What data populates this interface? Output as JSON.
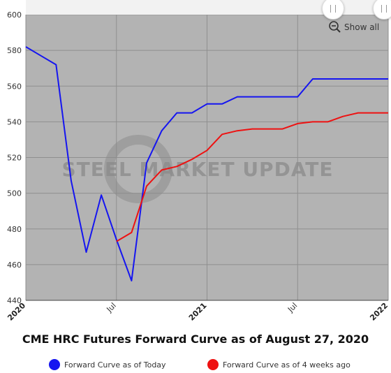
{
  "chart_data": {
    "type": "line",
    "title": "CME HRC Futures Forward Curve as of August 27, 2020",
    "xlabel": "",
    "ylabel": "",
    "ylim": [
      440,
      600
    ],
    "yticks": [
      440,
      460,
      480,
      500,
      520,
      540,
      560,
      580,
      600
    ],
    "xlim": [
      "2020-01",
      "2022-01"
    ],
    "xticks": [
      "2020",
      "Jul",
      "2021",
      "Jul",
      "2022"
    ],
    "x_axis_type": "monthly time",
    "grid": true,
    "legend_position": "bottom",
    "watermark": "STEEL MARKET UPDATE",
    "series": [
      {
        "name": "Forward Curve as of Today",
        "color": "#1515f0",
        "points": [
          {
            "x": "2020-01",
            "y": 582
          },
          {
            "x": "2020-02",
            "y": 577
          },
          {
            "x": "2020-03",
            "y": 572
          },
          {
            "x": "2020-04",
            "y": 507
          },
          {
            "x": "2020-05",
            "y": 467
          },
          {
            "x": "2020-06",
            "y": 499
          },
          {
            "x": "2020-07",
            "y": 474
          },
          {
            "x": "2020-08",
            "y": 451
          },
          {
            "x": "2020-09",
            "y": 517
          },
          {
            "x": "2020-10",
            "y": 535
          },
          {
            "x": "2020-11",
            "y": 545
          },
          {
            "x": "2020-12",
            "y": 545
          },
          {
            "x": "2021-01",
            "y": 550
          },
          {
            "x": "2021-02",
            "y": 550
          },
          {
            "x": "2021-03",
            "y": 554
          },
          {
            "x": "2021-04",
            "y": 554
          },
          {
            "x": "2021-05",
            "y": 554
          },
          {
            "x": "2021-06",
            "y": 554
          },
          {
            "x": "2021-07",
            "y": 554
          },
          {
            "x": "2021-08",
            "y": 564
          },
          {
            "x": "2021-09",
            "y": 564
          },
          {
            "x": "2021-10",
            "y": 564
          },
          {
            "x": "2021-11",
            "y": 564
          },
          {
            "x": "2021-12",
            "y": 564
          },
          {
            "x": "2022-01",
            "y": 564
          }
        ]
      },
      {
        "name": "Forward Curve as of 4 weeks ago",
        "color": "#ee1111",
        "points": [
          {
            "x": "2020-07",
            "y": 473
          },
          {
            "x": "2020-08",
            "y": 478
          },
          {
            "x": "2020-09",
            "y": 504
          },
          {
            "x": "2020-10",
            "y": 513
          },
          {
            "x": "2020-11",
            "y": 515
          },
          {
            "x": "2020-12",
            "y": 519
          },
          {
            "x": "2021-01",
            "y": 524
          },
          {
            "x": "2021-02",
            "y": 533
          },
          {
            "x": "2021-03",
            "y": 535
          },
          {
            "x": "2021-04",
            "y": 536
          },
          {
            "x": "2021-05",
            "y": 536
          },
          {
            "x": "2021-06",
            "y": 536
          },
          {
            "x": "2021-07",
            "y": 539
          },
          {
            "x": "2021-08",
            "y": 540
          },
          {
            "x": "2021-09",
            "y": 540
          },
          {
            "x": "2021-10",
            "y": 543
          },
          {
            "x": "2021-11",
            "y": 545
          },
          {
            "x": "2021-12",
            "y": 545
          },
          {
            "x": "2022-01",
            "y": 545
          }
        ]
      }
    ]
  },
  "controls": {
    "zoom_label": "Show all",
    "zoom_icon": "magnifier-minus-icon"
  },
  "colors": {
    "plot_background": "#b3b3b3",
    "gridline": "#8f8f8f",
    "navigator_band": "#f2f2f2"
  }
}
